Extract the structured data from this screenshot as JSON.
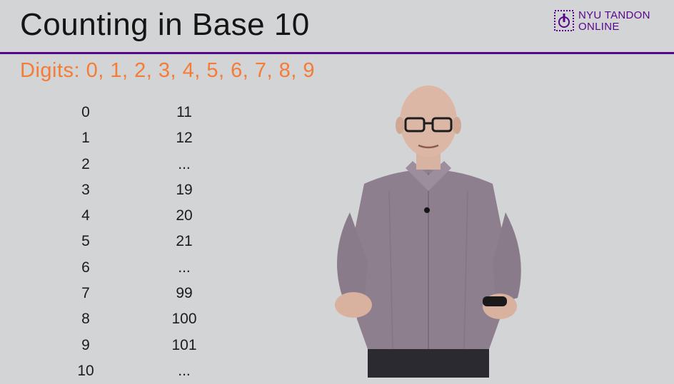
{
  "slide": {
    "title": "Counting in Base 10",
    "subtitle": "Digits: 0, 1, 2, 3, 4, 5, 6, 7, 8, 9"
  },
  "logo": {
    "line1": "NYU TANDON",
    "line2": "ONLINE",
    "icon": "nyu-torch-icon",
    "color": "#57068c"
  },
  "colors": {
    "background": "#d3d4d6",
    "accent_rule": "#57068c",
    "subtitle": "#f47c36"
  },
  "counting": {
    "left": [
      "0",
      "1",
      "2",
      "3",
      "4",
      "5",
      "6",
      "7",
      "8",
      "9",
      "10"
    ],
    "right": [
      "11",
      "12",
      "...",
      "19",
      "20",
      "21",
      "...",
      "99",
      "100",
      "101",
      "..."
    ]
  }
}
